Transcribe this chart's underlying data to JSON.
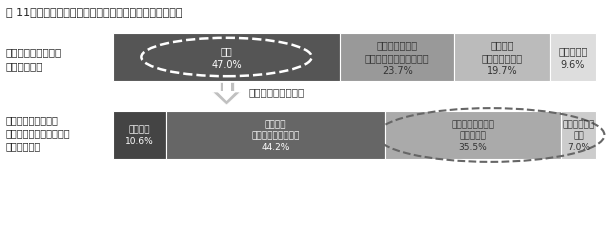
{
  "title": "図 11　介護を受けたい場所と望む介護サービスの提供者",
  "top_row_label1": "要介護になったとき",
  "top_row_label2": "住みたい場所",
  "bottom_row_label1": "誰に介護されたいか",
  "bottom_row_label2": "（自宅で介護を希望する",
  "bottom_row_label3": "人のみ対象）",
  "arrow_label": "誰に介護されたいか",
  "top_bars": [
    {
      "label": "自宅\n47.0%",
      "value": 47.0,
      "color": "#555555",
      "text_color": "#ffffff"
    },
    {
      "label": "自宅以外の居宅\n（老人ホーム・サ高住）\n23.7%",
      "value": 23.7,
      "color": "#999999",
      "text_color": "#333333"
    },
    {
      "label": "介護施設\n（老健・特養）\n19.7%",
      "value": 19.7,
      "color": "#bbbbbb",
      "text_color": "#333333"
    },
    {
      "label": "わからない\n9.6%",
      "value": 9.6,
      "color": "#dddddd",
      "text_color": "#333333"
    }
  ],
  "bottom_bars": [
    {
      "label": "家族だけ\n10.6%",
      "value": 10.6,
      "color": "#444444",
      "text_color": "#ffffff"
    },
    {
      "label": "主：家族\n補助：介護サービス\n44.2%",
      "value": 44.2,
      "color": "#666666",
      "text_color": "#ffffff"
    },
    {
      "label": "主：介護サービス\n補助：家族\n35.5%",
      "value": 35.5,
      "color": "#aaaaaa",
      "text_color": "#333333"
    },
    {
      "label": "介護サービス\nだけ\n7.0%",
      "value": 7.0,
      "color": "#cccccc",
      "text_color": "#333333"
    }
  ],
  "bg_color": "#ffffff"
}
